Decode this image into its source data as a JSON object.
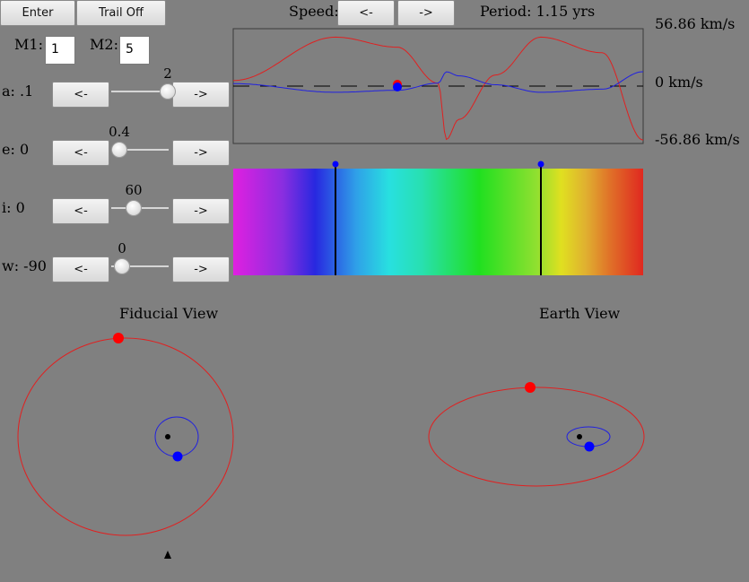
{
  "toolbar": {
    "enter_label": "Enter",
    "trail_label": "Trail Off",
    "speed_label": "Speed:",
    "speed_down": "<-",
    "speed_up": "->",
    "period_text": "Period: 1.15 yrs"
  },
  "masses": {
    "m1_label": "M1:",
    "m1_value": "1",
    "m2_label": "M2:",
    "m2_value": "5"
  },
  "params": [
    {
      "label": "a: .1",
      "value": "2",
      "level": 1.0,
      "down": "<-",
      "up": "->"
    },
    {
      "label": "e: 0",
      "value": "0.4",
      "level": 0.0,
      "down": "<-",
      "up": "->"
    },
    {
      "label": "i: 0",
      "value": "60",
      "level": 0.3,
      "down": "<-",
      "up": "->"
    },
    {
      "label": "w: -90",
      "value": "0",
      "level": 0.05,
      "down": "<-",
      "up": "->"
    }
  ],
  "velocity_plot": {
    "max_label": "56.86 km/s",
    "zero_label": "0 km/s",
    "min_label": "-56.86 km/s",
    "star1_color": "#ff0000",
    "star2_color": "#0000ff"
  },
  "views": {
    "fiducial_title": "Fiducial View",
    "earth_title": "Earth View"
  },
  "colors": {
    "background": "#808080",
    "star1": "#ff0000",
    "star2": "#0000ff",
    "com": "#000000"
  }
}
